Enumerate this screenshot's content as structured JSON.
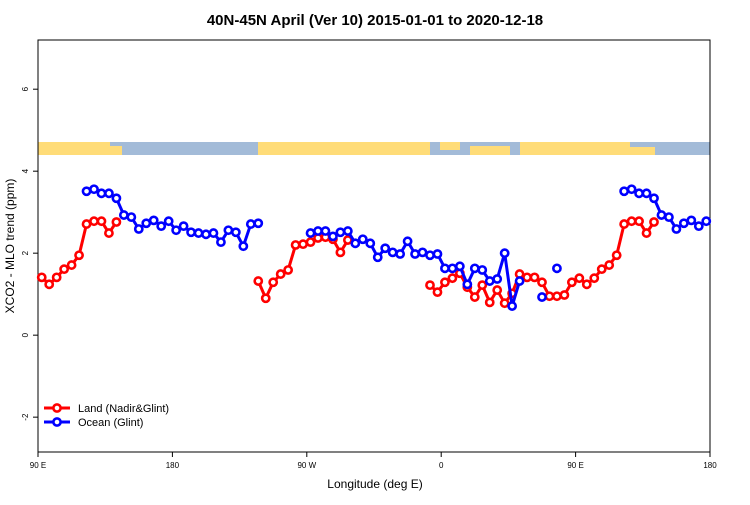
{
  "chart_data": {
    "type": "line",
    "title": "40N-45N April (Ver 10)   2015-01-01 to 2020-12-18",
    "x_label": "Longitude (deg E)",
    "y_label": "XCO2 - MLO trend (ppm)",
    "xlim": [
      90,
      540
    ],
    "xticks": [
      {
        "value": 90,
        "label": "90 E"
      },
      {
        "value": 180,
        "label": "180"
      },
      {
        "value": 270,
        "label": "90 W"
      },
      {
        "value": 360,
        "label": "0"
      },
      {
        "value": 450,
        "label": "90 E"
      },
      {
        "value": 540,
        "label": "180"
      }
    ],
    "ylim": [
      -2.85,
      7.2
    ],
    "yticks": [
      -2,
      0,
      2,
      4,
      6
    ],
    "legend": "bottom left",
    "series": [
      {
        "name": "Land (Nadir&Glint)",
        "color": "#ff0000",
        "x": [
          92.5,
          97.5,
          102.5,
          107.5,
          112.5,
          117.5,
          122.5,
          127.5,
          132.5,
          137.5,
          142.5,
          147.5,
          237.5,
          242.5,
          247.5,
          252.5,
          257.5,
          262.5,
          267.5,
          272.5,
          277.5,
          282.5,
          287.5,
          292.5,
          297.5,
          302.5,
          352.5,
          357.5,
          362.5,
          367.5,
          372.5,
          377.5,
          382.5,
          387.5,
          392.5,
          397.5,
          402.5,
          407.5,
          412.5,
          417.5,
          422.5,
          427.5,
          432.5,
          437.5,
          442.5,
          447.5,
          452.5,
          457.5,
          462.5,
          467.5,
          472.5,
          477.5,
          482.5,
          487.5,
          492.5,
          497.5,
          502.5
        ],
        "values": [
          1.41,
          1.24,
          1.41,
          1.61,
          1.71,
          1.95,
          2.71,
          2.78,
          2.78,
          2.49,
          2.76,
          null,
          1.32,
          0.9,
          1.29,
          1.49,
          1.59,
          2.2,
          2.22,
          2.27,
          2.37,
          2.39,
          2.34,
          2.02,
          2.32,
          null,
          1.22,
          1.05,
          1.29,
          1.39,
          1.51,
          1.17,
          0.93,
          1.22,
          0.8,
          1.1,
          0.78,
          1.02,
          1.49,
          1.41,
          1.41,
          1.29,
          0.95,
          0.95,
          0.98,
          1.29,
          1.39,
          1.24,
          1.39,
          1.61,
          1.71,
          1.95,
          2.71,
          2.78,
          2.78,
          2.49,
          2.76
        ]
      },
      {
        "name": "Ocean (Glint)",
        "color": "#0000ff",
        "x": [
          122.5,
          127.5,
          132.5,
          137.5,
          142.5,
          147.5,
          152.5,
          157.5,
          162.5,
          167.5,
          172.5,
          177.5,
          182.5,
          187.5,
          192.5,
          197.5,
          202.5,
          207.5,
          212.5,
          217.5,
          222.5,
          227.5,
          232.5,
          237.5,
          242.5,
          272.5,
          277.5,
          282.5,
          287.5,
          292.5,
          297.5,
          302.5,
          307.5,
          312.5,
          317.5,
          322.5,
          327.5,
          332.5,
          337.5,
          342.5,
          347.5,
          352.5,
          357.5,
          362.5,
          367.5,
          372.5,
          377.5,
          382.5,
          387.5,
          392.5,
          397.5,
          402.5,
          407.5,
          412.5,
          417.5,
          427.5,
          432.5,
          437.5,
          442.5,
          482.5,
          487.5,
          492.5,
          497.5,
          502.5,
          507.5,
          512.5,
          517.5,
          522.5,
          527.5,
          532.5,
          537.5
        ],
        "values": [
          3.51,
          3.56,
          3.46,
          3.46,
          3.34,
          2.93,
          2.88,
          2.59,
          2.73,
          2.8,
          2.66,
          2.78,
          2.56,
          2.66,
          2.51,
          2.49,
          2.46,
          2.49,
          2.27,
          2.56,
          2.51,
          2.17,
          2.71,
          2.73,
          null,
          2.49,
          2.54,
          2.54,
          2.41,
          2.51,
          2.54,
          2.24,
          2.34,
          2.24,
          1.9,
          2.12,
          2.02,
          1.98,
          2.29,
          1.98,
          2.02,
          1.95,
          1.98,
          1.63,
          1.63,
          1.68,
          1.24,
          1.63,
          1.59,
          1.32,
          1.37,
          2.0,
          0.71,
          1.32,
          null,
          0.93,
          null,
          1.63,
          null,
          3.51,
          3.56,
          3.46,
          3.46,
          3.34,
          2.93,
          2.88,
          2.59,
          2.73,
          2.8,
          2.66,
          2.78
        ]
      }
    ]
  }
}
